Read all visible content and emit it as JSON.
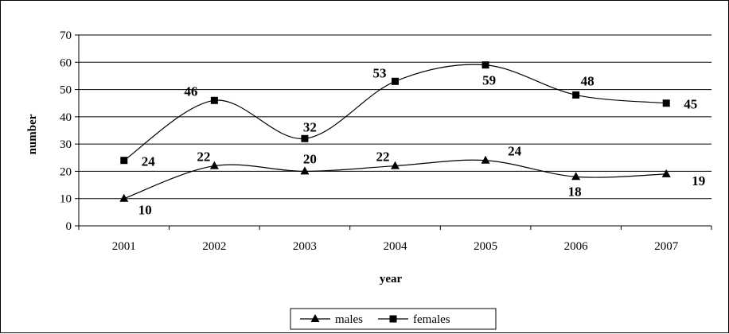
{
  "chart_data": {
    "type": "line",
    "categories": [
      "2001",
      "2002",
      "2003",
      "2004",
      "2005",
      "2006",
      "2007"
    ],
    "series": [
      {
        "name": "males",
        "marker": "triangle",
        "values": [
          10,
          22,
          20,
          22,
          24,
          18,
          19
        ]
      },
      {
        "name": "females",
        "marker": "square",
        "values": [
          24,
          46,
          32,
          53,
          59,
          48,
          45
        ]
      }
    ],
    "title": "",
    "xlabel": "year",
    "ylabel": "number",
    "ylim": [
      0,
      70
    ],
    "yticks": [
      "0",
      "10",
      "20",
      "30",
      "40",
      "50",
      "60",
      "70"
    ],
    "grid": true,
    "legend": "bottom",
    "smooth": true,
    "line_color": "#000000",
    "grid_color": "#000000"
  }
}
